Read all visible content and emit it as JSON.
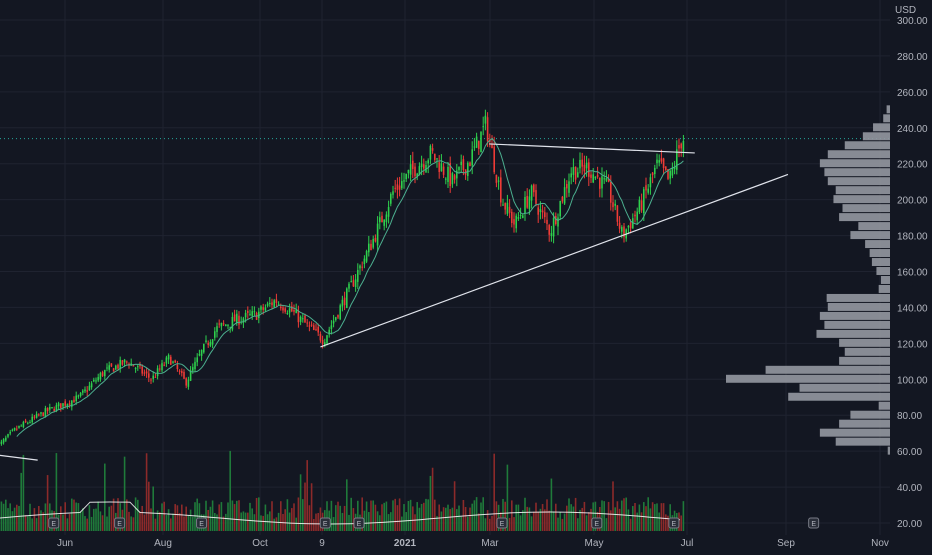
{
  "chart_data": {
    "type": "candlestick",
    "currency_label": "USD",
    "x_tick_labels": [
      "Jun",
      "Aug",
      "Oct",
      "9",
      "2021",
      "Mar",
      "May",
      "Jul",
      "Sep",
      "Nov"
    ],
    "y_tick_labels": [
      "20.00",
      "40.00",
      "60.00",
      "80.00",
      "100.00",
      "120.00",
      "140.00",
      "160.00",
      "180.00",
      "200.00",
      "220.00",
      "240.00",
      "260.00",
      "280.00",
      "300.00"
    ],
    "price_axis": {
      "min": 20,
      "max": 300,
      "step": 20,
      "scale": "linear"
    },
    "last_price": 234,
    "grid": true,
    "colors": {
      "up": "#26a69a",
      "up_bright": "#2ed14d",
      "down": "#ef3b36",
      "background": "#131722",
      "ma": "#4caf8f",
      "trendline": "#e0e3eb",
      "volume_profile": "#9598a1",
      "volume_avg": "#ffffff",
      "last_price_line": "#26a69a"
    },
    "price_path": [
      {
        "date": "2020-05-01",
        "close": 72
      },
      {
        "date": "2020-05-20",
        "close": 82
      },
      {
        "date": "2020-06-10",
        "close": 90
      },
      {
        "date": "2020-06-25",
        "close": 104
      },
      {
        "date": "2020-07-10",
        "close": 110
      },
      {
        "date": "2020-07-25",
        "close": 100
      },
      {
        "date": "2020-08-05",
        "close": 112
      },
      {
        "date": "2020-08-15",
        "close": 98
      },
      {
        "date": "2020-08-25",
        "close": 115
      },
      {
        "date": "2020-09-03",
        "close": 128
      },
      {
        "date": "2020-09-15",
        "close": 133
      },
      {
        "date": "2020-09-28",
        "close": 136
      },
      {
        "date": "2020-10-10",
        "close": 144
      },
      {
        "date": "2020-10-20",
        "close": 138
      },
      {
        "date": "2020-11-01",
        "close": 128
      },
      {
        "date": "2020-11-09",
        "close": 122
      },
      {
        "date": "2020-11-25",
        "close": 150
      },
      {
        "date": "2020-12-10",
        "close": 178
      },
      {
        "date": "2020-12-22",
        "close": 204
      },
      {
        "date": "2021-01-05",
        "close": 218
      },
      {
        "date": "2021-01-15",
        "close": 226
      },
      {
        "date": "2021-01-28",
        "close": 210
      },
      {
        "date": "2021-02-08",
        "close": 222
      },
      {
        "date": "2021-02-18",
        "close": 242
      },
      {
        "date": "2021-02-28",
        "close": 200
      },
      {
        "date": "2021-03-08",
        "close": 186
      },
      {
        "date": "2021-03-18",
        "close": 204
      },
      {
        "date": "2021-03-30",
        "close": 182
      },
      {
        "date": "2021-04-12",
        "close": 216
      },
      {
        "date": "2021-04-22",
        "close": 218
      },
      {
        "date": "2021-05-05",
        "close": 206
      },
      {
        "date": "2021-05-14",
        "close": 180
      },
      {
        "date": "2021-05-25",
        "close": 196
      },
      {
        "date": "2021-06-05",
        "close": 220
      },
      {
        "date": "2021-06-12",
        "close": 210
      },
      {
        "date": "2021-06-20",
        "close": 234
      }
    ],
    "trendlines": [
      {
        "name": "resistance",
        "from": {
          "date": "2021-02-20",
          "price": 231
        },
        "to": {
          "date": "2021-06-28",
          "price": 226
        }
      },
      {
        "name": "support",
        "from": {
          "date": "2020-11-07",
          "price": 118
        },
        "to": {
          "date": "2021-08-25",
          "price": 214
        }
      },
      {
        "name": "fragment",
        "from": {
          "date": "2020-04-01",
          "price": 60
        },
        "to": {
          "date": "2020-05-15",
          "price": 55
        }
      }
    ],
    "earnings_markers": [
      {
        "label": "E",
        "date": "2020-05-25"
      },
      {
        "label": "E",
        "date": "2020-07-05"
      },
      {
        "label": "E",
        "date": "2020-08-25"
      },
      {
        "label": "E",
        "date": "2020-11-10"
      },
      {
        "label": "E",
        "date": "2020-12-01"
      },
      {
        "label": "E",
        "date": "2021-02-28"
      },
      {
        "label": "E",
        "date": "2021-04-28"
      },
      {
        "label": "E",
        "date": "2021-06-15"
      },
      {
        "label": "E",
        "date": "2021-09-10"
      }
    ],
    "volume_profile": [
      {
        "price": 250,
        "size": 3
      },
      {
        "price": 245,
        "size": 6
      },
      {
        "price": 240,
        "size": 15
      },
      {
        "price": 235,
        "size": 24
      },
      {
        "price": 230,
        "size": 40
      },
      {
        "price": 225,
        "size": 55
      },
      {
        "price": 220,
        "size": 62
      },
      {
        "price": 215,
        "size": 58
      },
      {
        "price": 210,
        "size": 55
      },
      {
        "price": 205,
        "size": 48
      },
      {
        "price": 200,
        "size": 50
      },
      {
        "price": 195,
        "size": 42
      },
      {
        "price": 190,
        "size": 45
      },
      {
        "price": 185,
        "size": 28
      },
      {
        "price": 180,
        "size": 35
      },
      {
        "price": 175,
        "size": 22
      },
      {
        "price": 170,
        "size": 18
      },
      {
        "price": 165,
        "size": 16
      },
      {
        "price": 160,
        "size": 12
      },
      {
        "price": 155,
        "size": 8
      },
      {
        "price": 150,
        "size": 10
      },
      {
        "price": 145,
        "size": 56
      },
      {
        "price": 140,
        "size": 55
      },
      {
        "price": 135,
        "size": 62
      },
      {
        "price": 130,
        "size": 58
      },
      {
        "price": 125,
        "size": 65
      },
      {
        "price": 120,
        "size": 45
      },
      {
        "price": 115,
        "size": 40
      },
      {
        "price": 110,
        "size": 45
      },
      {
        "price": 105,
        "size": 110
      },
      {
        "price": 100,
        "size": 145
      },
      {
        "price": 95,
        "size": 80
      },
      {
        "price": 90,
        "size": 90
      },
      {
        "price": 85,
        "size": 10
      },
      {
        "price": 80,
        "size": 35
      },
      {
        "price": 75,
        "size": 45
      },
      {
        "price": 70,
        "size": 62
      },
      {
        "price": 65,
        "size": 48
      },
      {
        "price": 60,
        "size": 2
      }
    ]
  }
}
